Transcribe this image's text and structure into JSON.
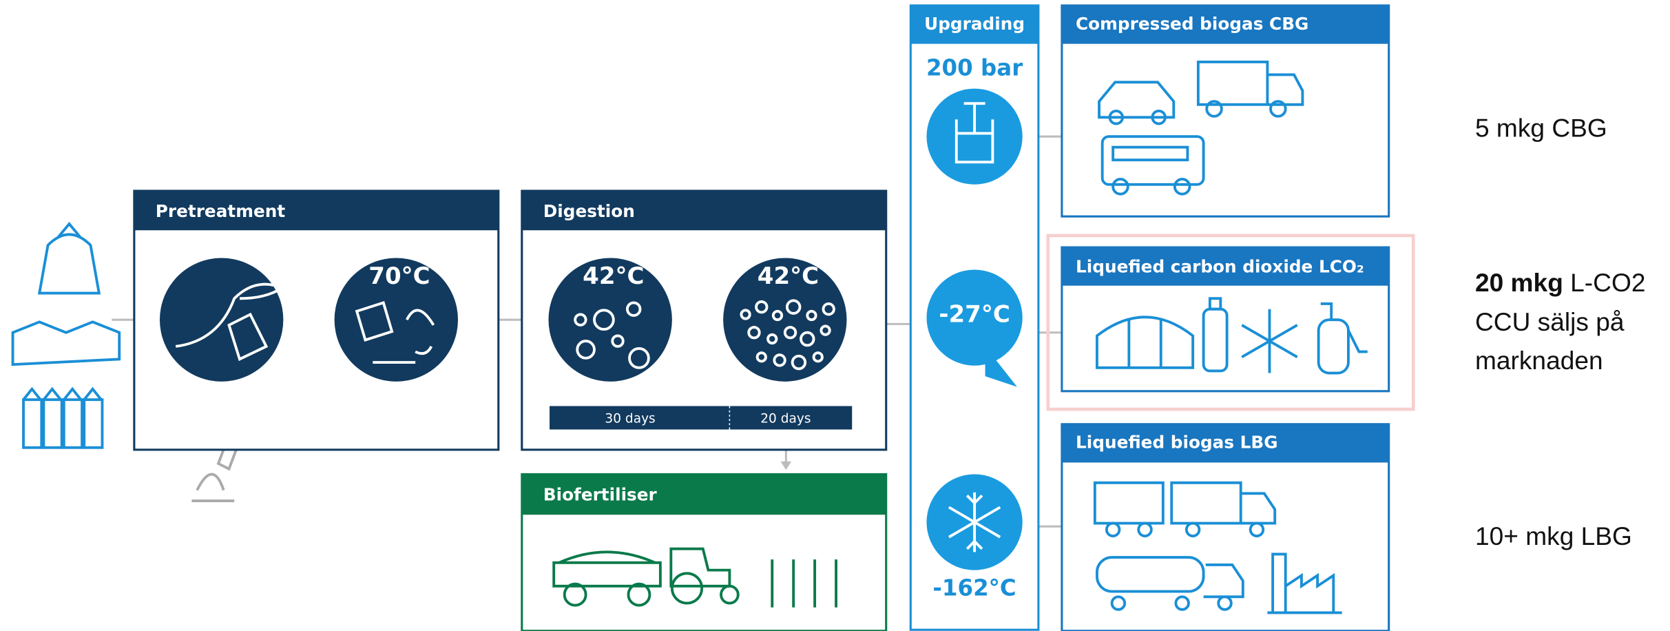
{
  "pretreatment": {
    "title": "Pretreatment",
    "temperature": "70°C"
  },
  "digestion": {
    "title": "Digestion",
    "temperatures": [
      "42°C",
      "42°C"
    ],
    "durations": [
      "30 days",
      "20 days"
    ]
  },
  "biofertiliser": {
    "title": "Biofertiliser"
  },
  "upgrading": {
    "title": "Upgrading",
    "pressure": "200 bar",
    "temperatures": [
      "-27°C",
      "-162°C"
    ]
  },
  "outputs": [
    {
      "title": "Compressed biogas CBG"
    },
    {
      "title": "Liquefied carbon dioxide LCO₂"
    },
    {
      "title": "Liquefied biogas LBG"
    }
  ],
  "notes": [
    {
      "lines": [
        "5 mkg CBG"
      ]
    },
    {
      "bold": "20 mkg",
      "lines": [
        " L-CO2",
        "CCU säljs på",
        "marknaden"
      ]
    },
    {
      "lines": [
        "10+ mkg LBG"
      ]
    }
  ]
}
